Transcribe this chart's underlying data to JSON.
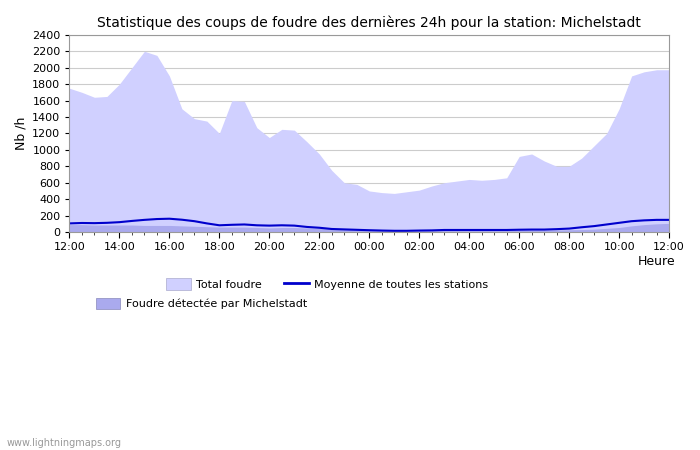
{
  "title": "Statistique des coups de foudre des dernières 24h pour la station: Michelstadt",
  "ylabel": "Nb /h",
  "xlabel": "Heure",
  "watermark": "www.lightningmaps.org",
  "ylim": [
    0,
    2400
  ],
  "yticks": [
    0,
    200,
    400,
    600,
    800,
    1000,
    1200,
    1400,
    1600,
    1800,
    2000,
    2200,
    2400
  ],
  "xtick_labels": [
    "12:00",
    "14:00",
    "16:00",
    "18:00",
    "20:00",
    "22:00",
    "00:00",
    "02:00",
    "04:00",
    "06:00",
    "08:00",
    "10:00",
    "12:00"
  ],
  "background_color": "#ffffff",
  "plot_bg_color": "#ffffff",
  "grid_color": "#cccccc",
  "total_foudre_color": "#d0d0ff",
  "michelstadt_color": "#aaaaee",
  "mean_line_color": "#0000cc",
  "total_foudre_values": [
    1750,
    1700,
    1640,
    1650,
    1800,
    2000,
    2200,
    2150,
    1900,
    1500,
    1380,
    1350,
    1200,
    1600,
    1590,
    1270,
    1150,
    1250,
    1240,
    1100,
    950,
    750,
    600,
    580,
    500,
    480,
    470,
    490,
    510,
    560,
    600,
    620,
    640,
    630,
    640,
    660,
    920,
    950,
    865,
    800,
    800,
    900,
    1050,
    1200,
    1500,
    1900,
    1950,
    1975,
    1975
  ],
  "michelstadt_values": [
    90,
    90,
    85,
    85,
    85,
    85,
    80,
    80,
    80,
    75,
    70,
    65,
    60,
    60,
    60,
    55,
    50,
    55,
    55,
    50,
    45,
    40,
    35,
    30,
    25,
    20,
    18,
    15,
    15,
    18,
    20,
    20,
    22,
    22,
    22,
    22,
    25,
    25,
    25,
    25,
    28,
    30,
    35,
    45,
    55,
    75,
    90,
    100,
    105
  ],
  "mean_line_values": [
    105,
    110,
    108,
    112,
    120,
    135,
    148,
    158,
    162,
    150,
    132,
    105,
    82,
    88,
    92,
    82,
    78,
    82,
    78,
    62,
    52,
    37,
    32,
    27,
    22,
    18,
    15,
    15,
    18,
    20,
    25,
    25,
    25,
    25,
    25,
    25,
    28,
    30,
    30,
    35,
    42,
    58,
    72,
    92,
    112,
    132,
    142,
    148,
    148
  ]
}
